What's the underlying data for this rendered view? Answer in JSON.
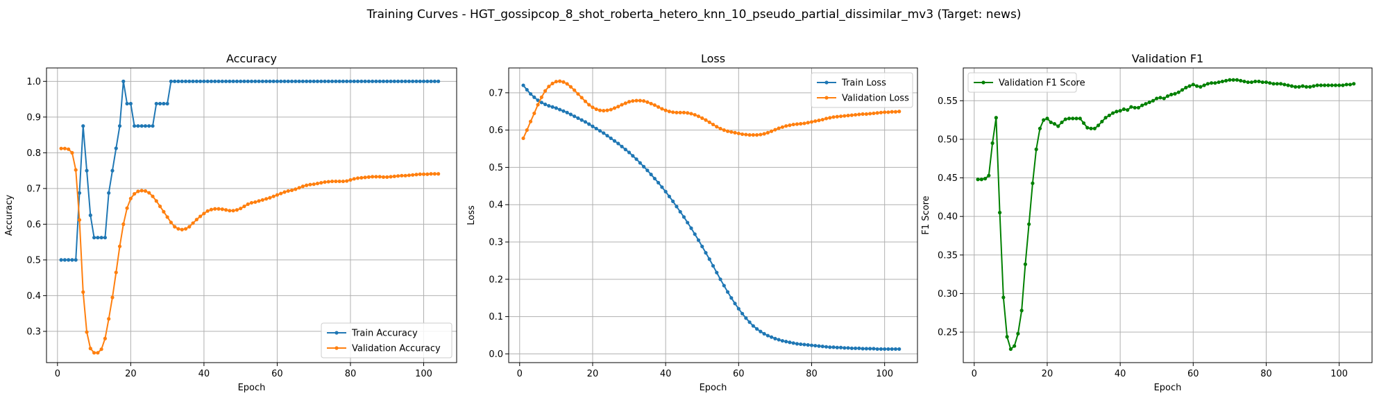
{
  "suptitle": "Training Curves - HGT_gossipcop_8_shot_roberta_hetero_knn_10_pseudo_partial_dissimilar_mv3 (Target: news)",
  "colors": {
    "train": "#1f77b4",
    "validation": "#ff7f0e",
    "f1": "#008000",
    "grid": "#b0b0b0",
    "axes": "#000000"
  },
  "chart_data": [
    {
      "type": "line",
      "title": "Accuracy",
      "xlabel": "Epoch",
      "ylabel": "Accuracy",
      "xlim": [
        -3,
        109
      ],
      "ylim": [
        0.2125,
        1.0375
      ],
      "xticks": [
        0,
        20,
        40,
        60,
        80,
        100
      ],
      "yticks": [
        0.3,
        0.4,
        0.5,
        0.6,
        0.7,
        0.8,
        0.9,
        1.0
      ],
      "ytick_labels": [
        "0.3",
        "0.4",
        "0.5",
        "0.6",
        "0.7",
        "0.8",
        "0.9",
        "1.0"
      ],
      "grid": true,
      "legend": "lower-right",
      "series": [
        {
          "name": "Train Accuracy",
          "color": "#1f77b4",
          "x_start": 1,
          "values": [
            0.5,
            0.5,
            0.5,
            0.5,
            0.5,
            0.6875,
            0.875,
            0.75,
            0.625,
            0.5625,
            0.5625,
            0.5625,
            0.5625,
            0.6875,
            0.75,
            0.8125,
            0.875,
            1.0,
            0.9375,
            0.9375,
            0.875,
            0.875,
            0.875,
            0.875,
            0.875,
            0.875,
            0.9375,
            0.9375,
            0.9375,
            0.9375,
            1.0,
            1.0,
            1.0,
            1.0,
            1.0,
            1.0,
            1.0,
            1.0,
            1.0,
            1.0,
            1.0,
            1.0,
            1.0,
            1.0,
            1.0,
            1.0,
            1.0,
            1.0,
            1.0,
            1.0,
            1.0,
            1.0,
            1.0,
            1.0,
            1.0,
            1.0,
            1.0,
            1.0,
            1.0,
            1.0,
            1.0,
            1.0,
            1.0,
            1.0,
            1.0,
            1.0,
            1.0,
            1.0,
            1.0,
            1.0,
            1.0,
            1.0,
            1.0,
            1.0,
            1.0,
            1.0,
            1.0,
            1.0,
            1.0,
            1.0,
            1.0,
            1.0,
            1.0,
            1.0,
            1.0,
            1.0,
            1.0,
            1.0,
            1.0,
            1.0,
            1.0,
            1.0,
            1.0,
            1.0,
            1.0,
            1.0,
            1.0,
            1.0,
            1.0,
            1.0,
            1.0,
            1.0,
            1.0,
            1.0
          ]
        },
        {
          "name": "Validation Accuracy",
          "color": "#ff7f0e",
          "x_start": 1,
          "values": [
            0.812,
            0.812,
            0.81,
            0.8,
            0.752,
            0.612,
            0.41,
            0.298,
            0.252,
            0.24,
            0.24,
            0.25,
            0.28,
            0.335,
            0.395,
            0.465,
            0.538,
            0.6,
            0.645,
            0.672,
            0.685,
            0.692,
            0.694,
            0.693,
            0.688,
            0.678,
            0.665,
            0.65,
            0.635,
            0.62,
            0.605,
            0.593,
            0.587,
            0.585,
            0.587,
            0.593,
            0.603,
            0.613,
            0.622,
            0.63,
            0.637,
            0.641,
            0.643,
            0.643,
            0.642,
            0.64,
            0.638,
            0.638,
            0.64,
            0.644,
            0.65,
            0.656,
            0.66,
            0.662,
            0.665,
            0.668,
            0.671,
            0.674,
            0.678,
            0.682,
            0.686,
            0.69,
            0.693,
            0.695,
            0.698,
            0.702,
            0.706,
            0.709,
            0.711,
            0.712,
            0.714,
            0.716,
            0.718,
            0.719,
            0.72,
            0.72,
            0.72,
            0.72,
            0.721,
            0.724,
            0.727,
            0.729,
            0.73,
            0.731,
            0.732,
            0.733,
            0.733,
            0.733,
            0.732,
            0.732,
            0.733,
            0.734,
            0.735,
            0.736,
            0.736,
            0.737,
            0.738,
            0.739,
            0.74,
            0.74,
            0.74,
            0.741,
            0.741,
            0.741
          ]
        }
      ]
    },
    {
      "type": "line",
      "title": "Loss",
      "xlabel": "Epoch",
      "ylabel": "Loss",
      "xlim": [
        -3,
        109
      ],
      "ylim": [
        -0.0234,
        0.7666
      ],
      "xticks": [
        0,
        20,
        40,
        60,
        80,
        100
      ],
      "yticks": [
        0.0,
        0.1,
        0.2,
        0.3,
        0.4,
        0.5,
        0.6,
        0.7
      ],
      "ytick_labels": [
        "0.0",
        "0.1",
        "0.2",
        "0.3",
        "0.4",
        "0.5",
        "0.6",
        "0.7"
      ],
      "grid": true,
      "legend": "upper-right",
      "series": [
        {
          "name": "Train Loss",
          "color": "#1f77b4",
          "x_start": 1,
          "values": [
            0.72,
            0.708,
            0.697,
            0.688,
            0.68,
            0.674,
            0.669,
            0.665,
            0.662,
            0.659,
            0.655,
            0.651,
            0.647,
            0.642,
            0.637,
            0.632,
            0.627,
            0.622,
            0.616,
            0.61,
            0.604,
            0.598,
            0.592,
            0.585,
            0.578,
            0.571,
            0.564,
            0.556,
            0.548,
            0.54,
            0.531,
            0.522,
            0.512,
            0.502,
            0.492,
            0.481,
            0.47,
            0.459,
            0.447,
            0.435,
            0.422,
            0.409,
            0.395,
            0.381,
            0.367,
            0.352,
            0.337,
            0.321,
            0.305,
            0.288,
            0.271,
            0.254,
            0.236,
            0.218,
            0.2,
            0.183,
            0.166,
            0.15,
            0.135,
            0.121,
            0.108,
            0.096,
            0.085,
            0.075,
            0.067,
            0.06,
            0.054,
            0.049,
            0.045,
            0.041,
            0.038,
            0.035,
            0.033,
            0.031,
            0.029,
            0.027,
            0.026,
            0.025,
            0.024,
            0.023,
            0.022,
            0.021,
            0.02,
            0.019,
            0.018,
            0.018,
            0.017,
            0.017,
            0.016,
            0.016,
            0.015,
            0.015,
            0.015,
            0.014,
            0.014,
            0.014,
            0.014,
            0.013,
            0.013,
            0.013,
            0.013,
            0.013,
            0.013,
            0.013
          ]
        },
        {
          "name": "Validation Loss",
          "color": "#ff7f0e",
          "x_start": 1,
          "values": [
            0.578,
            0.6,
            0.623,
            0.645,
            0.668,
            0.688,
            0.705,
            0.717,
            0.725,
            0.73,
            0.731,
            0.729,
            0.724,
            0.716,
            0.707,
            0.697,
            0.687,
            0.677,
            0.668,
            0.661,
            0.656,
            0.653,
            0.652,
            0.653,
            0.655,
            0.659,
            0.663,
            0.668,
            0.672,
            0.676,
            0.678,
            0.679,
            0.679,
            0.678,
            0.675,
            0.671,
            0.667,
            0.662,
            0.657,
            0.653,
            0.65,
            0.648,
            0.647,
            0.647,
            0.647,
            0.646,
            0.644,
            0.641,
            0.637,
            0.632,
            0.627,
            0.621,
            0.615,
            0.609,
            0.604,
            0.6,
            0.597,
            0.595,
            0.593,
            0.591,
            0.589,
            0.588,
            0.587,
            0.587,
            0.587,
            0.588,
            0.59,
            0.593,
            0.597,
            0.601,
            0.605,
            0.608,
            0.611,
            0.613,
            0.615,
            0.616,
            0.617,
            0.618,
            0.62,
            0.622,
            0.624,
            0.626,
            0.628,
            0.631,
            0.633,
            0.635,
            0.636,
            0.637,
            0.638,
            0.639,
            0.64,
            0.641,
            0.642,
            0.643,
            0.643,
            0.644,
            0.645,
            0.646,
            0.647,
            0.648,
            0.648,
            0.649,
            0.649,
            0.65
          ]
        }
      ]
    },
    {
      "type": "line",
      "title": "Validation F1",
      "xlabel": "Epoch",
      "ylabel": "F1 Score",
      "xlim": [
        -3,
        109
      ],
      "ylim": [
        0.2105,
        0.5925
      ],
      "xticks": [
        0,
        20,
        40,
        60,
        80,
        100
      ],
      "yticks": [
        0.25,
        0.3,
        0.35,
        0.4,
        0.45,
        0.5,
        0.55
      ],
      "ytick_labels": [
        "0.25",
        "0.30",
        "0.35",
        "0.40",
        "0.45",
        "0.50",
        "0.55"
      ],
      "grid": true,
      "legend": "upper-left",
      "series": [
        {
          "name": "Validation F1 Score",
          "color": "#008000",
          "x_start": 1,
          "values": [
            0.448,
            0.448,
            0.449,
            0.453,
            0.495,
            0.528,
            0.405,
            0.295,
            0.244,
            0.228,
            0.232,
            0.248,
            0.278,
            0.338,
            0.39,
            0.443,
            0.487,
            0.514,
            0.525,
            0.527,
            0.522,
            0.52,
            0.517,
            0.522,
            0.526,
            0.527,
            0.527,
            0.527,
            0.527,
            0.521,
            0.515,
            0.514,
            0.514,
            0.518,
            0.523,
            0.528,
            0.531,
            0.534,
            0.536,
            0.537,
            0.539,
            0.538,
            0.542,
            0.541,
            0.541,
            0.544,
            0.546,
            0.548,
            0.55,
            0.553,
            0.554,
            0.553,
            0.556,
            0.558,
            0.559,
            0.561,
            0.564,
            0.567,
            0.569,
            0.571,
            0.569,
            0.568,
            0.57,
            0.572,
            0.573,
            0.573,
            0.574,
            0.575,
            0.576,
            0.577,
            0.577,
            0.577,
            0.576,
            0.575,
            0.574,
            0.574,
            0.575,
            0.575,
            0.574,
            0.574,
            0.573,
            0.572,
            0.572,
            0.572,
            0.571,
            0.57,
            0.569,
            0.568,
            0.568,
            0.569,
            0.568,
            0.568,
            0.569,
            0.57,
            0.57,
            0.57,
            0.57,
            0.57,
            0.57,
            0.57,
            0.57,
            0.571,
            0.571,
            0.572
          ]
        }
      ]
    }
  ]
}
